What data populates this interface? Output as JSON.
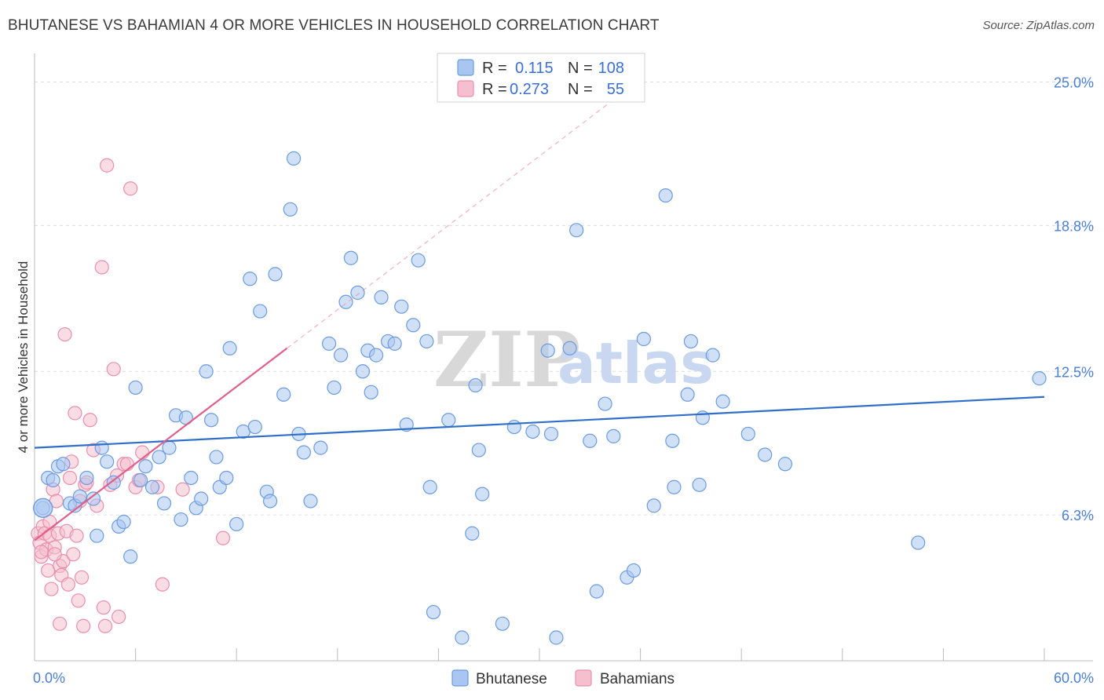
{
  "title": "BHUTANESE VS BAHAMIAN 4 OR MORE VEHICLES IN HOUSEHOLD CORRELATION CHART",
  "source": "Source: ZipAtlas.com",
  "watermark": {
    "zip": "ZIP",
    "atlas": "atlas"
  },
  "colors": {
    "blue_fill": "#a9c6f0",
    "blue_stroke": "#6b9be0",
    "blue_line": "#2f6fc9",
    "pink_fill": "#f6bfd0",
    "pink_stroke": "#e98fae",
    "pink_line": "#e0608a",
    "grid": "#dcdcdc",
    "tick_text": "#4a7fd4"
  },
  "legend": {
    "r_label": "R =",
    "n_label": "N =",
    "rows": [
      {
        "r": "0.115",
        "n": "108"
      },
      {
        "r": "0.273",
        "n": "55"
      }
    ]
  },
  "bottom_legend": [
    "Bhutanese",
    "Bahamians"
  ],
  "chart_data": {
    "type": "scatter",
    "ylabel": "4 or more Vehicles in Household",
    "xlabel": "",
    "xlim": [
      0,
      60
    ],
    "ylim": [
      0,
      25.9
    ],
    "x_tick_labels": [
      "0.0%",
      "60.0%"
    ],
    "y_ticks": [
      6.3,
      12.5,
      18.8,
      25.0
    ],
    "y_tick_labels": [
      "6.3%",
      "12.5%",
      "18.8%",
      "25.0%"
    ],
    "grid": true,
    "legend_position": "top-center",
    "series": [
      {
        "name": "Bhutanese",
        "r": 0.115,
        "n": 108,
        "trend": {
          "x": [
            0,
            60
          ],
          "y": [
            9.2,
            11.4
          ],
          "dashed_extension": false
        },
        "points": [
          [
            0.5,
            6.6
          ],
          [
            0.8,
            7.9
          ],
          [
            1.1,
            7.8
          ],
          [
            1.4,
            8.4
          ],
          [
            1.7,
            8.5
          ],
          [
            2.1,
            6.8
          ],
          [
            2.4,
            6.7
          ],
          [
            2.7,
            7.1
          ],
          [
            3.1,
            7.9
          ],
          [
            3.5,
            7.0
          ],
          [
            3.7,
            5.4
          ],
          [
            4.0,
            9.2
          ],
          [
            4.3,
            8.6
          ],
          [
            4.7,
            7.7
          ],
          [
            5.0,
            5.8
          ],
          [
            5.3,
            6.0
          ],
          [
            5.7,
            4.5
          ],
          [
            6.0,
            11.8
          ],
          [
            6.3,
            7.8
          ],
          [
            6.6,
            8.4
          ],
          [
            7.0,
            7.5
          ],
          [
            7.4,
            8.8
          ],
          [
            7.7,
            6.8
          ],
          [
            8.0,
            9.2
          ],
          [
            8.4,
            10.6
          ],
          [
            8.7,
            6.1
          ],
          [
            9.0,
            10.5
          ],
          [
            9.3,
            7.9
          ],
          [
            9.6,
            6.6
          ],
          [
            9.9,
            7.0
          ],
          [
            10.2,
            12.5
          ],
          [
            10.5,
            10.4
          ],
          [
            10.8,
            8.8
          ],
          [
            11.0,
            7.5
          ],
          [
            11.4,
            7.9
          ],
          [
            11.6,
            13.5
          ],
          [
            12.0,
            5.9
          ],
          [
            12.4,
            9.9
          ],
          [
            12.8,
            16.5
          ],
          [
            13.1,
            10.1
          ],
          [
            13.4,
            15.1
          ],
          [
            13.8,
            7.3
          ],
          [
            14.0,
            6.9
          ],
          [
            14.3,
            16.7
          ],
          [
            14.8,
            11.5
          ],
          [
            15.2,
            19.5
          ],
          [
            15.4,
            21.7
          ],
          [
            15.7,
            9.8
          ],
          [
            16.0,
            9.0
          ],
          [
            16.4,
            6.9
          ],
          [
            17.0,
            9.2
          ],
          [
            17.5,
            13.7
          ],
          [
            17.8,
            11.8
          ],
          [
            18.2,
            13.2
          ],
          [
            18.5,
            15.5
          ],
          [
            18.8,
            17.4
          ],
          [
            19.2,
            15.9
          ],
          [
            19.5,
            12.5
          ],
          [
            19.8,
            13.4
          ],
          [
            20.0,
            11.6
          ],
          [
            20.3,
            13.2
          ],
          [
            20.6,
            15.7
          ],
          [
            21.0,
            13.8
          ],
          [
            21.4,
            13.7
          ],
          [
            21.8,
            15.3
          ],
          [
            22.1,
            10.2
          ],
          [
            22.5,
            14.5
          ],
          [
            22.8,
            17.3
          ],
          [
            23.3,
            13.8
          ],
          [
            23.5,
            7.5
          ],
          [
            23.7,
            2.1
          ],
          [
            24.6,
            10.4
          ],
          [
            25.4,
            1.0
          ],
          [
            26.0,
            5.5
          ],
          [
            26.2,
            11.9
          ],
          [
            26.4,
            9.1
          ],
          [
            26.6,
            7.2
          ],
          [
            27.8,
            1.6
          ],
          [
            28.5,
            10.1
          ],
          [
            29.6,
            9.9
          ],
          [
            30.5,
            13.4
          ],
          [
            30.7,
            9.8
          ],
          [
            31.0,
            1.0
          ],
          [
            31.8,
            13.5
          ],
          [
            33.0,
            9.5
          ],
          [
            33.4,
            3.0
          ],
          [
            33.9,
            11.1
          ],
          [
            34.4,
            9.7
          ],
          [
            35.2,
            3.6
          ],
          [
            35.6,
            3.9
          ],
          [
            36.2,
            13.9
          ],
          [
            36.8,
            6.7
          ],
          [
            37.5,
            20.1
          ],
          [
            37.9,
            9.5
          ],
          [
            38.0,
            7.5
          ],
          [
            38.8,
            11.5
          ],
          [
            39.0,
            13.8
          ],
          [
            39.5,
            7.6
          ],
          [
            39.7,
            10.5
          ],
          [
            40.3,
            13.2
          ],
          [
            40.9,
            11.2
          ],
          [
            32.2,
            18.6
          ],
          [
            42.4,
            9.8
          ],
          [
            43.4,
            8.9
          ],
          [
            44.6,
            8.5
          ],
          [
            52.5,
            5.1
          ],
          [
            59.7,
            12.2
          ]
        ],
        "highlight_point": [
          0.5,
          6.6
        ]
      },
      {
        "name": "Bahamians",
        "r": 0.273,
        "n": 55,
        "trend": {
          "x": [
            0,
            15
          ],
          "y": [
            5.2,
            13.5
          ],
          "dashed_extension_to": [
            60,
            35.0
          ]
        },
        "points": [
          [
            0.2,
            5.5
          ],
          [
            0.3,
            5.1
          ],
          [
            0.4,
            4.5
          ],
          [
            0.5,
            5.8
          ],
          [
            0.6,
            5.5
          ],
          [
            0.7,
            4.8
          ],
          [
            0.8,
            3.9
          ],
          [
            0.9,
            5.4
          ],
          [
            1.0,
            3.1
          ],
          [
            1.1,
            7.4
          ],
          [
            1.2,
            4.9
          ],
          [
            1.3,
            6.9
          ],
          [
            1.4,
            5.5
          ],
          [
            1.5,
            4.1
          ],
          [
            1.5,
            1.6
          ],
          [
            1.6,
            3.7
          ],
          [
            1.7,
            4.3
          ],
          [
            1.8,
            14.1
          ],
          [
            1.9,
            5.6
          ],
          [
            2.0,
            3.3
          ],
          [
            2.1,
            7.9
          ],
          [
            2.2,
            8.6
          ],
          [
            2.3,
            4.6
          ],
          [
            2.4,
            10.7
          ],
          [
            2.5,
            5.4
          ],
          [
            2.6,
            2.6
          ],
          [
            2.7,
            6.9
          ],
          [
            2.8,
            3.6
          ],
          [
            2.9,
            1.5
          ],
          [
            3.0,
            7.6
          ],
          [
            3.1,
            7.7
          ],
          [
            3.3,
            10.4
          ],
          [
            3.5,
            9.1
          ],
          [
            3.7,
            6.7
          ],
          [
            4.0,
            17.0
          ],
          [
            4.1,
            2.3
          ],
          [
            4.2,
            1.5
          ],
          [
            4.3,
            21.4
          ],
          [
            4.5,
            7.6
          ],
          [
            4.7,
            12.6
          ],
          [
            4.9,
            8.0
          ],
          [
            5.0,
            1.9
          ],
          [
            5.3,
            8.5
          ],
          [
            5.5,
            8.5
          ],
          [
            5.7,
            20.4
          ],
          [
            6.0,
            7.5
          ],
          [
            6.2,
            7.8
          ],
          [
            6.4,
            9.0
          ],
          [
            7.3,
            7.5
          ],
          [
            7.6,
            3.3
          ],
          [
            8.8,
            7.4
          ],
          [
            11.2,
            5.3
          ],
          [
            0.4,
            4.7
          ],
          [
            0.9,
            6.0
          ],
          [
            1.2,
            4.6
          ]
        ]
      }
    ]
  }
}
